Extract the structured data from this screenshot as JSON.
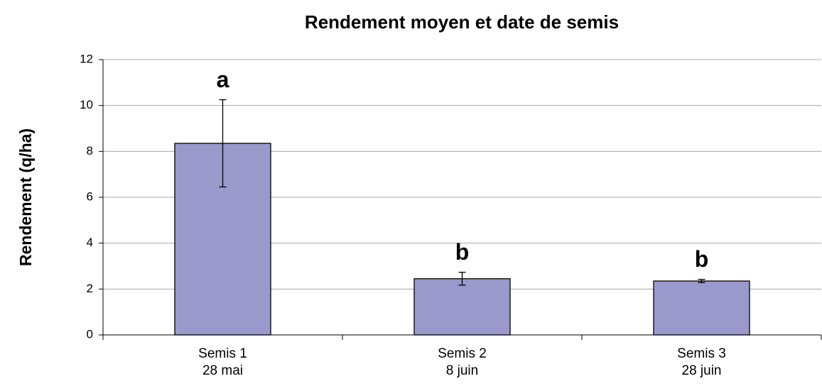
{
  "chart_data": {
    "type": "bar",
    "title": "Rendement moyen et date de semis",
    "y_label": "Rendement (q/ha)",
    "categories": [
      [
        "Semis 1",
        "28 mai"
      ],
      [
        "Semis 2",
        "8 juin"
      ],
      [
        "Semis 3",
        "28 juin"
      ]
    ],
    "values": [
      8.35,
      2.45,
      2.35
    ],
    "errors": [
      1.9,
      0.28,
      0.07
    ],
    "annotations": [
      "a",
      "b",
      "b"
    ],
    "color": "#9999cc",
    "ylim": [
      0,
      12
    ],
    "yticks": [
      0,
      2,
      4,
      6,
      8,
      10,
      12
    ],
    "grid": true
  }
}
